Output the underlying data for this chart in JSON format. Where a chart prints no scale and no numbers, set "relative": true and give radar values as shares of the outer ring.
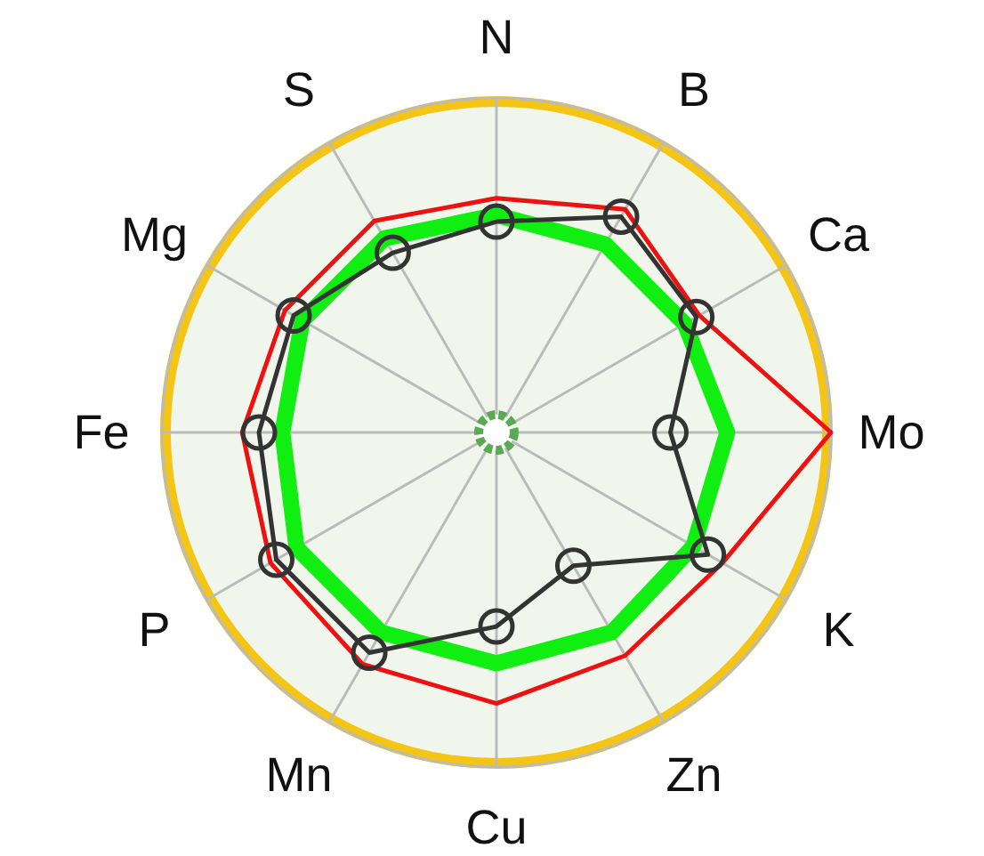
{
  "chart_data": {
    "type": "radar",
    "relative": true,
    "grid": true,
    "legend": false,
    "categories": [
      "N",
      "B",
      "Ca",
      "Mo",
      "K",
      "Zn",
      "Cu",
      "Mn",
      "P",
      "Fe",
      "Mg",
      "S"
    ],
    "series": [
      {
        "color": "#ee1111",
        "marker": "none",
        "values": [
          0.7,
          0.77,
          0.7,
          1.0,
          0.78,
          0.77,
          0.81,
          0.8,
          0.78,
          0.76,
          0.73,
          0.73
        ]
      },
      {
        "color": "#11ee11",
        "marker": "none",
        "values": [
          0.65,
          0.65,
          0.65,
          0.69,
          0.68,
          0.69,
          0.69,
          0.69,
          0.69,
          0.64,
          0.67,
          0.67
        ]
      },
      {
        "color": "#333333",
        "marker": "circle",
        "values": [
          0.63,
          0.745,
          0.69,
          0.52,
          0.73,
          0.46,
          0.58,
          0.76,
          0.76,
          0.71,
          0.7,
          0.62
        ]
      }
    ]
  }
}
